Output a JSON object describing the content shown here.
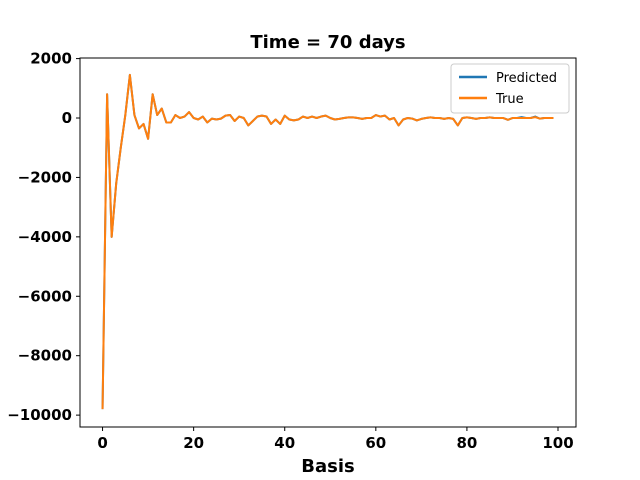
{
  "chart_data": {
    "type": "line",
    "title": "Time = 70 days",
    "xlabel": "Basis",
    "ylabel": "",
    "xlim": [
      -4.95,
      103.95
    ],
    "ylim": [
      -10400,
      2020
    ],
    "xticks": [
      0,
      20,
      40,
      60,
      80,
      100
    ],
    "yticks": [
      -10000,
      -8000,
      -6000,
      -4000,
      -2000,
      0,
      2000
    ],
    "grid": false,
    "legend_position": "top-right",
    "series": [
      {
        "name": "Predicted",
        "color": "#1f77b4",
        "x": [
          0,
          1,
          2,
          3,
          4,
          5,
          6,
          7,
          8,
          9,
          10,
          11,
          12,
          13,
          14,
          15,
          16,
          17,
          18,
          19,
          20,
          21,
          22,
          23,
          24,
          25,
          26,
          27,
          28,
          29,
          30,
          31,
          32,
          33,
          34,
          35,
          36,
          37,
          38,
          39,
          40,
          41,
          42,
          43,
          44,
          45,
          46,
          47,
          48,
          49,
          50,
          51,
          52,
          53,
          54,
          55,
          56,
          57,
          58,
          59,
          60,
          61,
          62,
          63,
          64,
          65,
          66,
          67,
          68,
          69,
          70,
          71,
          72,
          73,
          74,
          75,
          76,
          77,
          78,
          79,
          80,
          81,
          82,
          83,
          84,
          85,
          86,
          87,
          88,
          89,
          90,
          91,
          92,
          93,
          94,
          95,
          96,
          97,
          98,
          99
        ],
        "y": [
          -9800,
          800,
          -4000,
          -2200,
          -1000,
          100,
          1450,
          100,
          -350,
          -200,
          -700,
          800,
          100,
          320,
          -150,
          -150,
          100,
          0,
          50,
          200,
          0,
          -50,
          50,
          -150,
          -20,
          -50,
          -20,
          80,
          100,
          -100,
          50,
          0,
          -250,
          -100,
          50,
          80,
          50,
          -200,
          -50,
          -200,
          80,
          -50,
          -80,
          -50,
          50,
          0,
          50,
          0,
          50,
          80,
          0,
          -50,
          -30,
          0,
          20,
          20,
          0,
          -30,
          0,
          0,
          100,
          50,
          80,
          -50,
          0,
          -250,
          -50,
          0,
          -20,
          -80,
          -30,
          0,
          20,
          0,
          0,
          -30,
          0,
          -30,
          -250,
          0,
          20,
          0,
          -30,
          0,
          0,
          20,
          0,
          0,
          0,
          -60,
          0,
          0,
          30,
          0,
          0,
          50,
          -20,
          0,
          0,
          0
        ]
      },
      {
        "name": "True",
        "color": "#ff7f0e",
        "x": [
          0,
          1,
          2,
          3,
          4,
          5,
          6,
          7,
          8,
          9,
          10,
          11,
          12,
          13,
          14,
          15,
          16,
          17,
          18,
          19,
          20,
          21,
          22,
          23,
          24,
          25,
          26,
          27,
          28,
          29,
          30,
          31,
          32,
          33,
          34,
          35,
          36,
          37,
          38,
          39,
          40,
          41,
          42,
          43,
          44,
          45,
          46,
          47,
          48,
          49,
          50,
          51,
          52,
          53,
          54,
          55,
          56,
          57,
          58,
          59,
          60,
          61,
          62,
          63,
          64,
          65,
          66,
          67,
          68,
          69,
          70,
          71,
          72,
          73,
          74,
          75,
          76,
          77,
          78,
          79,
          80,
          81,
          82,
          83,
          84,
          85,
          86,
          87,
          88,
          89,
          90,
          91,
          92,
          93,
          94,
          95,
          96,
          97,
          98,
          99
        ],
        "y": [
          -9800,
          800,
          -4000,
          -2200,
          -1000,
          100,
          1450,
          100,
          -350,
          -200,
          -700,
          800,
          100,
          320,
          -150,
          -150,
          100,
          0,
          50,
          200,
          0,
          -50,
          50,
          -150,
          -20,
          -50,
          -20,
          80,
          100,
          -100,
          50,
          0,
          -250,
          -100,
          50,
          80,
          50,
          -200,
          -50,
          -200,
          80,
          -50,
          -80,
          -50,
          50,
          0,
          50,
          0,
          50,
          80,
          0,
          -50,
          -30,
          0,
          20,
          20,
          0,
          -30,
          0,
          0,
          100,
          50,
          80,
          -50,
          0,
          -250,
          -50,
          0,
          -20,
          -80,
          -30,
          0,
          20,
          0,
          0,
          -30,
          0,
          -30,
          -250,
          0,
          20,
          0,
          -30,
          0,
          0,
          20,
          0,
          0,
          0,
          -60,
          0,
          0,
          0,
          0,
          0,
          30,
          -20,
          0,
          0,
          0
        ]
      }
    ]
  }
}
